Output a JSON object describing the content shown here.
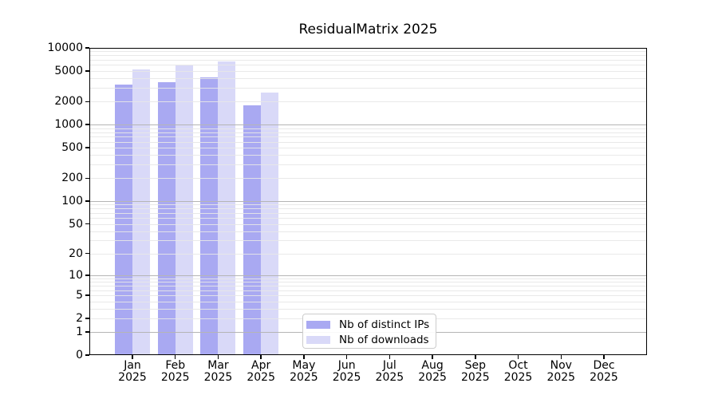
{
  "title": "ResidualMatrix 2025",
  "chart_data": {
    "type": "bar",
    "title": "ResidualMatrix 2025",
    "months": [
      "Jan",
      "Feb",
      "Mar",
      "Apr",
      "May",
      "Jun",
      "Jul",
      "Aug",
      "Sep",
      "Oct",
      "Nov",
      "Dec"
    ],
    "year_label": "2025",
    "series": [
      {
        "name": "Nb of distinct IPs",
        "color": "#a9a9f2",
        "values": [
          3300,
          3600,
          4100,
          1800,
          null,
          null,
          null,
          null,
          null,
          null,
          null,
          null
        ]
      },
      {
        "name": "Nb of downloads",
        "color": "#d9d9f8",
        "values": [
          5200,
          5900,
          6600,
          2600,
          null,
          null,
          null,
          null,
          null,
          null,
          null,
          null
        ]
      }
    ],
    "yscale": "log1p",
    "ylim": [
      0,
      10000
    ],
    "yticks": [
      0,
      1,
      2,
      5,
      10,
      20,
      50,
      100,
      200,
      500,
      1000,
      2000,
      5000,
      10000
    ],
    "grid": {
      "enabled": true,
      "major_at": [
        1,
        10,
        100,
        1000
      ],
      "minor_per_decade": [
        2,
        3,
        4,
        5,
        6,
        7,
        8,
        9
      ],
      "major_color": "#b5b5b5",
      "minor_color": "#e7e7e7"
    },
    "legend_position": "inside-lower-center",
    "background_color": "#ffffff",
    "axis_color": "#000000"
  }
}
